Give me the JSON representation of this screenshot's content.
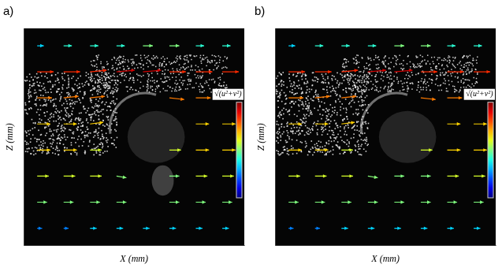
{
  "chart_data": [
    {
      "type": "quiver",
      "title": "a)",
      "x_label": "X (mm)",
      "y_label": "Z (mm)",
      "xlim": [
        0,
        100
      ],
      "ylim": [
        0,
        100
      ],
      "tick_labels": false,
      "grid": false,
      "colorbar": {
        "label": "√(u²+v²)",
        "range": [
          0,
          1.2
        ]
      },
      "x": [
        6,
        18,
        30,
        42,
        54,
        66,
        78,
        90
      ],
      "z": [
        92,
        80,
        68,
        56,
        44,
        32,
        20,
        8
      ],
      "u": [
        [
          0.4,
          0.5,
          0.5,
          0.5,
          0.6,
          0.6,
          0.5,
          0.5
        ],
        [
          1.0,
          1.0,
          1.0,
          1.1,
          1.1,
          1.0,
          1.0,
          1.0
        ],
        [
          0.9,
          0.9,
          0.9,
          null,
          null,
          0.9,
          0.9,
          0.9
        ],
        [
          0.8,
          0.8,
          0.8,
          null,
          null,
          null,
          0.8,
          0.8
        ],
        [
          0.8,
          0.8,
          0.7,
          null,
          null,
          0.7,
          0.8,
          0.8
        ],
        [
          0.7,
          0.7,
          0.7,
          0.6,
          null,
          0.6,
          0.7,
          0.7
        ],
        [
          0.6,
          0.6,
          0.6,
          0.6,
          null,
          0.6,
          0.6,
          0.6
        ],
        [
          0.3,
          0.3,
          0.4,
          0.4,
          0.4,
          0.4,
          0.4,
          0.4
        ]
      ],
      "w": [
        [
          0,
          0,
          0,
          0,
          0,
          0,
          0,
          0
        ],
        [
          0,
          0,
          0.1,
          0.1,
          0.1,
          0,
          0,
          0
        ],
        [
          0,
          0.1,
          0.1,
          null,
          null,
          -0.1,
          0,
          0
        ],
        [
          0,
          0,
          0.1,
          null,
          null,
          null,
          0,
          0
        ],
        [
          0,
          0,
          0,
          null,
          null,
          0,
          0,
          0
        ],
        [
          0,
          0,
          0,
          -0.1,
          null,
          0,
          0,
          0
        ],
        [
          0,
          0,
          0,
          0,
          null,
          0,
          0,
          0
        ],
        [
          0,
          0,
          0,
          0,
          0,
          0,
          0,
          0
        ]
      ]
    },
    {
      "type": "quiver",
      "title": "b)",
      "x_label": "X (mm)",
      "y_label": "Z (mm)",
      "xlim": [
        0,
        100
      ],
      "ylim": [
        0,
        100
      ],
      "tick_labels": false,
      "grid": false,
      "colorbar": {
        "label": "√(u²+v²)",
        "range": [
          0,
          1.2
        ]
      },
      "x": [
        6,
        18,
        30,
        42,
        54,
        66,
        78,
        90
      ],
      "z": [
        92,
        80,
        68,
        56,
        44,
        32,
        20,
        8
      ],
      "u": [
        [
          0.4,
          0.5,
          0.5,
          0.5,
          0.6,
          0.6,
          0.5,
          0.5
        ],
        [
          1.0,
          1.0,
          1.0,
          1.1,
          1.1,
          1.0,
          1.0,
          1.0
        ],
        [
          0.9,
          0.9,
          0.9,
          null,
          null,
          0.9,
          0.9,
          0.9
        ],
        [
          0.8,
          0.8,
          0.8,
          null,
          null,
          null,
          0.8,
          0.8
        ],
        [
          0.8,
          0.8,
          0.7,
          null,
          null,
          0.7,
          0.8,
          0.8
        ],
        [
          0.7,
          0.7,
          0.7,
          0.6,
          0.6,
          0.6,
          0.7,
          0.7
        ],
        [
          0.6,
          0.6,
          0.6,
          0.6,
          0.6,
          0.6,
          0.6,
          0.6
        ],
        [
          0.3,
          0.3,
          0.4,
          0.4,
          0.4,
          0.4,
          0.4,
          0.4
        ]
      ],
      "w": [
        [
          0,
          0,
          0,
          0,
          0,
          0,
          0,
          0
        ],
        [
          0,
          0,
          0.1,
          0.1,
          0.1,
          0,
          0,
          0
        ],
        [
          0,
          0.1,
          0.1,
          null,
          null,
          -0.1,
          0,
          0
        ],
        [
          0,
          0,
          0.1,
          null,
          null,
          null,
          0,
          0
        ],
        [
          0,
          0,
          0,
          null,
          null,
          0,
          0,
          0
        ],
        [
          0,
          0,
          0,
          -0.1,
          0,
          0,
          0,
          0
        ],
        [
          0,
          0,
          0,
          0,
          0,
          0,
          0,
          0
        ],
        [
          0,
          0,
          0,
          0,
          0,
          0,
          0,
          0
        ]
      ]
    }
  ]
}
